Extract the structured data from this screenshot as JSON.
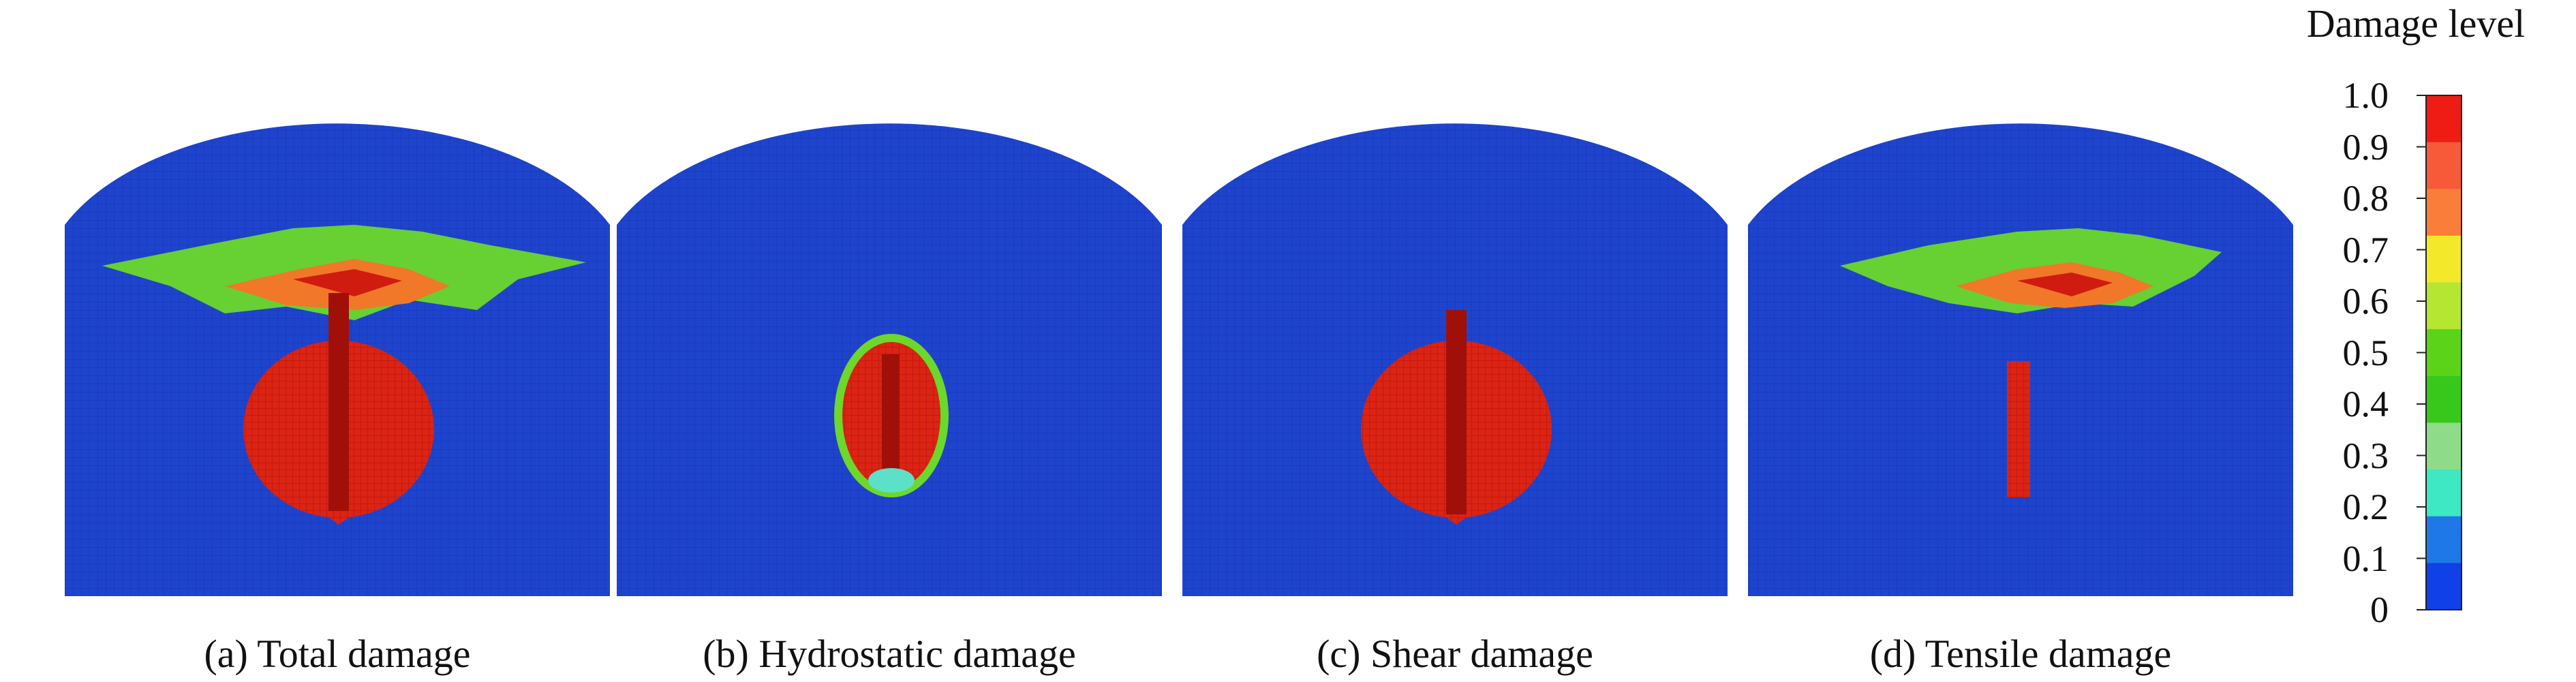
{
  "panels": [
    {
      "caption": "(a) Total damage",
      "pattern": "total"
    },
    {
      "caption": "(b) Hydrostatic damage",
      "pattern": "hydrostatic"
    },
    {
      "caption": "(c) Shear damage",
      "pattern": "shear"
    },
    {
      "caption": "(d) Tensile damage",
      "pattern": "tensile"
    }
  ],
  "colorbar": {
    "title": "Damage level",
    "ticks": [
      "1.0",
      "0.9",
      "0.8",
      "0.7",
      "0.6",
      "0.5",
      "0.4",
      "0.3",
      "0.2",
      "0.1",
      "0"
    ],
    "colors": [
      "#ee1c14",
      "#f65a38",
      "#fb7d3a",
      "#f3e82a",
      "#b4e632",
      "#5bd318",
      "#38c81c",
      "#8edc8a",
      "#3de8c2",
      "#1f78e8",
      "#1040e8"
    ]
  },
  "colors": {
    "background_blue": "#1a3ac4",
    "damage_red": "#d01c10",
    "damage_green": "#6cd82a",
    "damage_orange": "#f07828"
  }
}
